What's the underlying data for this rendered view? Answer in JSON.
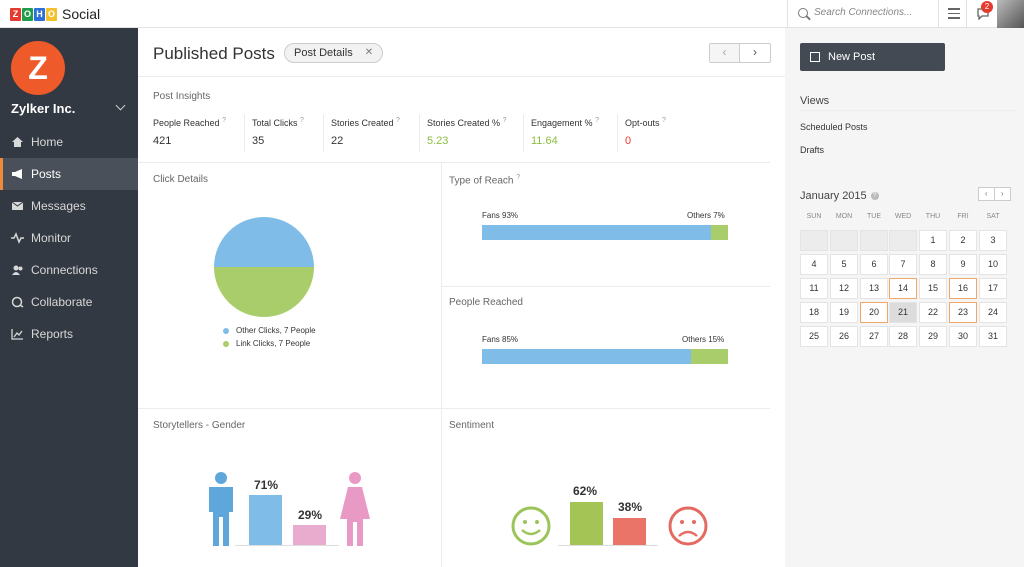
{
  "app": {
    "brand_letters": [
      "Z",
      "O",
      "H",
      "O"
    ],
    "brand_colors": [
      "#e53b2f",
      "#1f9c4c",
      "#2c6fd8",
      "#f2c12e"
    ],
    "product": "Social",
    "search_placeholder": "Search Connections...",
    "notification_count": "2"
  },
  "sidebar": {
    "org_initial": "Z",
    "org_name": "Zylker Inc.",
    "items": [
      {
        "label": "Home",
        "icon": "home-icon"
      },
      {
        "label": "Posts",
        "icon": "megaphone-icon",
        "active": true
      },
      {
        "label": "Messages",
        "icon": "envelope-icon"
      },
      {
        "label": "Monitor",
        "icon": "pulse-icon"
      },
      {
        "label": "Connections",
        "icon": "people-icon"
      },
      {
        "label": "Collaborate",
        "icon": "chat-icon"
      },
      {
        "label": "Reports",
        "icon": "chart-icon"
      }
    ]
  },
  "main": {
    "title": "Published Posts",
    "filter_chip": "Post Details",
    "insights_label": "Post Insights",
    "stats": [
      {
        "label": "People Reached",
        "value": "421",
        "color": "#333333"
      },
      {
        "label": "Total Clicks",
        "value": "35",
        "color": "#333333"
      },
      {
        "label": "Stories Created",
        "value": "22",
        "color": "#333333"
      },
      {
        "label": "Stories Created %",
        "value": "5.23",
        "color": "#8bbf3f"
      },
      {
        "label": "Engagement %",
        "value": "11.64",
        "color": "#8bbf3f"
      },
      {
        "label": "Opt-outs",
        "value": "0",
        "color": "#e53b2f"
      }
    ],
    "click_details": {
      "title": "Click Details",
      "legend": [
        "Other Clicks, 7 People",
        "Link Clicks, 7 People"
      ]
    },
    "type_of_reach": {
      "title": "Type of Reach",
      "left_label": "Fans 93%",
      "right_label": "Others 7%",
      "fans_fraction": 0.93
    },
    "people_reached": {
      "title": "People Reached",
      "left_label": "Fans 85%",
      "right_label": "Others 15%",
      "fans_fraction": 0.85
    },
    "gender": {
      "title": "Storytellers - Gender",
      "male_pct": "71%",
      "female_pct": "29%",
      "male_value": 71,
      "female_value": 29
    },
    "sentiment": {
      "title": "Sentiment",
      "positive_pct": "62%",
      "negative_pct": "38%",
      "positive_value": 62,
      "negative_value": 38
    }
  },
  "right": {
    "new_post": "New Post",
    "views_title": "Views",
    "views": [
      "Scheduled Posts",
      "Drafts"
    ],
    "calendar_title": "January 2015",
    "weekdays": [
      "SUN",
      "MON",
      "TUE",
      "WED",
      "THU",
      "FRI",
      "SAT"
    ],
    "first_weekday": 4,
    "days_in_month": 31,
    "highlighted_days": [
      14,
      16,
      20,
      23
    ],
    "today": 21
  },
  "chart_data": {
    "type": "pie",
    "title": "Click Details",
    "categories": [
      "Other Clicks",
      "Link Clicks"
    ],
    "values": [
      7,
      7
    ],
    "colors": [
      "#7fbde8",
      "#a9cd6a"
    ]
  }
}
